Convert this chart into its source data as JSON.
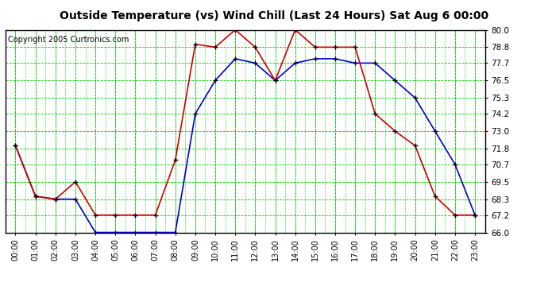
{
  "title": "Outside Temperature (vs) Wind Chill (Last 24 Hours) Sat Aug 6 00:00",
  "copyright": "Copyright 2005 Curtronics.com",
  "hours": [
    0,
    1,
    2,
    3,
    4,
    5,
    6,
    7,
    8,
    9,
    10,
    11,
    12,
    13,
    14,
    15,
    16,
    17,
    18,
    19,
    20,
    21,
    22,
    23
  ],
  "temp_blue": [
    72.0,
    68.5,
    68.3,
    68.3,
    66.0,
    66.0,
    66.0,
    66.0,
    66.0,
    74.2,
    76.5,
    78.0,
    77.7,
    76.5,
    77.7,
    78.0,
    78.0,
    77.7,
    77.7,
    76.5,
    75.3,
    73.0,
    70.7,
    67.2
  ],
  "windchill_red": [
    72.0,
    68.5,
    68.3,
    69.5,
    67.2,
    67.2,
    67.2,
    67.2,
    71.0,
    79.0,
    78.8,
    80.0,
    78.8,
    76.5,
    80.0,
    78.8,
    78.8,
    78.8,
    74.2,
    73.0,
    72.0,
    68.5,
    67.2,
    67.2
  ],
  "ylim": [
    66.0,
    80.0
  ],
  "yticks": [
    66.0,
    67.2,
    68.3,
    69.5,
    70.7,
    71.8,
    73.0,
    74.2,
    75.3,
    76.5,
    77.7,
    78.8,
    80.0
  ],
  "bg_color": "#ffffff",
  "grid_color": "#00cc00",
  "blue_color": "#0000cc",
  "red_color": "#cc0000",
  "title_fontsize": 10,
  "copyright_fontsize": 7,
  "marker_color": "#000000"
}
